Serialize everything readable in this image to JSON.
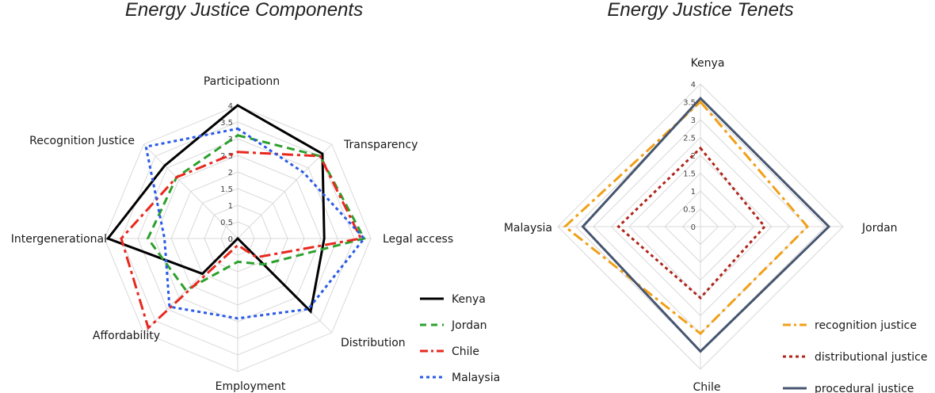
{
  "chart_data": [
    {
      "type": "radar",
      "title": "Energy Justice Components",
      "axes": [
        "Participationn",
        "Transparency",
        "Legal access",
        "Distribution",
        "Employment",
        "Affordability",
        "Intergenerational",
        "Recognition Justice"
      ],
      "ticks": [
        "0",
        "0.5",
        "1",
        "1.5",
        "2",
        "2.5",
        "3",
        "3.5",
        "4"
      ],
      "range": [
        0,
        4
      ],
      "series": [
        {
          "name": "Kenya",
          "values": [
            4,
            3.6,
            2.6,
            3.1,
            0,
            1.5,
            3.9,
            3.1
          ],
          "color": "#000000",
          "dash": "solid"
        },
        {
          "name": "Jordan",
          "values": [
            3.1,
            3.5,
            3.8,
            1.1,
            0.7,
            2.2,
            2.7,
            2.6
          ],
          "color": "#2ca02c",
          "dash": "dashed"
        },
        {
          "name": "Chile",
          "values": [
            2.6,
            3.5,
            3.7,
            0.8,
            0.2,
            3.8,
            3.5,
            2.6
          ],
          "color": "#e8281e",
          "dash": "dashdot"
        },
        {
          "name": "Malaysia",
          "values": [
            3.3,
            2.8,
            3.8,
            3.0,
            2.4,
            2.9,
            2.2,
            3.9
          ],
          "color": "#2a5ae8",
          "dash": "dotted"
        }
      ],
      "legend": "bottom-right"
    },
    {
      "type": "radar",
      "title": "Energy Justice Tenets",
      "axes": [
        "Kenya",
        "Jordan",
        "Chile",
        "Malaysia"
      ],
      "ticks": [
        "0",
        "0.5",
        "1",
        "1.5",
        "2",
        "2.5",
        "3",
        "3.5",
        "4"
      ],
      "range": [
        0,
        4
      ],
      "series": [
        {
          "name": "recognition justice",
          "values": [
            3.5,
            3.0,
            3.0,
            3.8
          ],
          "color": "#f0a018",
          "dash": "dashdot"
        },
        {
          "name": "distributional justice",
          "values": [
            2.2,
            1.8,
            2.0,
            2.3
          ],
          "color": "#b0251a",
          "dash": "dotted"
        },
        {
          "name": "procedural justice",
          "values": [
            3.6,
            3.6,
            3.5,
            3.3
          ],
          "color": "#465670",
          "dash": "solid"
        }
      ],
      "legend": "bottom-right"
    }
  ]
}
